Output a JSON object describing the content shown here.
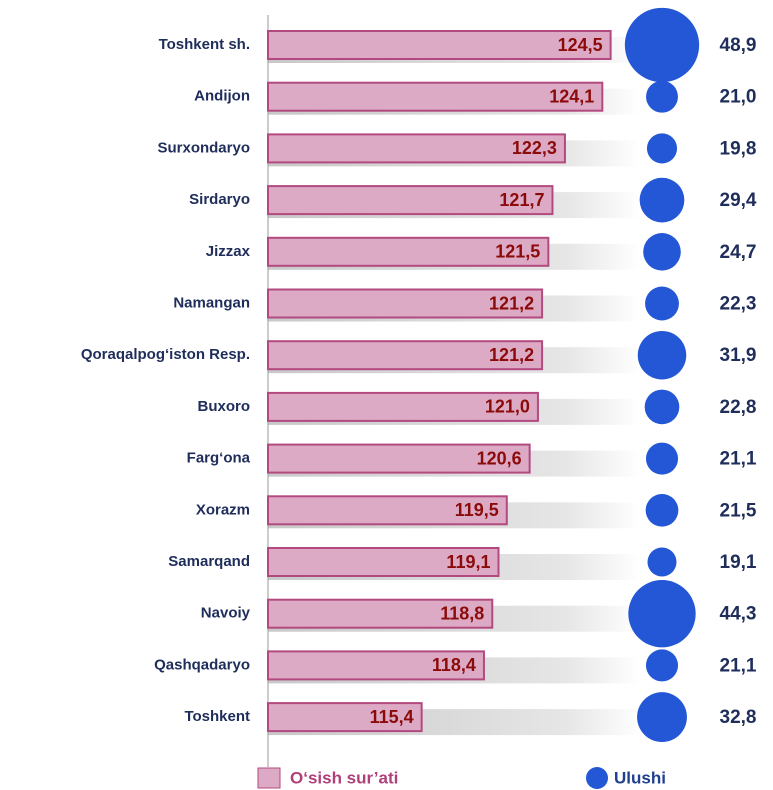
{
  "chart_data": {
    "type": "bar",
    "categories": [
      "Toshkent sh.",
      "Andijon",
      "Surxondaryo",
      "Sirdaryo",
      "Jizzax",
      "Namangan",
      "Qoraqalpog‘iston Resp.",
      "Buxoro",
      "Farg‘ona",
      "Xorazm",
      "Samarqand",
      "Navoiy",
      "Qashqadaryo",
      "Toshkent"
    ],
    "series": [
      {
        "name": "O‘sish sur’ati",
        "color": "#dcaac4",
        "values": [
          124.5,
          124.1,
          122.3,
          121.7,
          121.5,
          121.2,
          121.2,
          121.0,
          120.6,
          119.5,
          119.1,
          118.8,
          118.4,
          115.4
        ],
        "value_labels": [
          "124,5",
          "124,1",
          "122,3",
          "121,7",
          "121,5",
          "121,2",
          "121,2",
          "121,0",
          "120,6",
          "119,5",
          "119,1",
          "118,8",
          "118,4",
          "115,4"
        ]
      },
      {
        "name": "Ulushi",
        "color": "#2457d6",
        "values": [
          48.9,
          21.0,
          19.8,
          29.4,
          24.7,
          22.3,
          31.9,
          22.8,
          21.1,
          21.5,
          19.1,
          44.3,
          21.1,
          32.8
        ],
        "value_labels": [
          "48,9",
          "21,0",
          "19,8",
          "29,4",
          "24,7",
          "22,3",
          "31,9",
          "22,8",
          "21,1",
          "21,5",
          "19,1",
          "44,3",
          "21,1",
          "32,8"
        ]
      }
    ],
    "xlim": [
      108,
      125
    ]
  }
}
